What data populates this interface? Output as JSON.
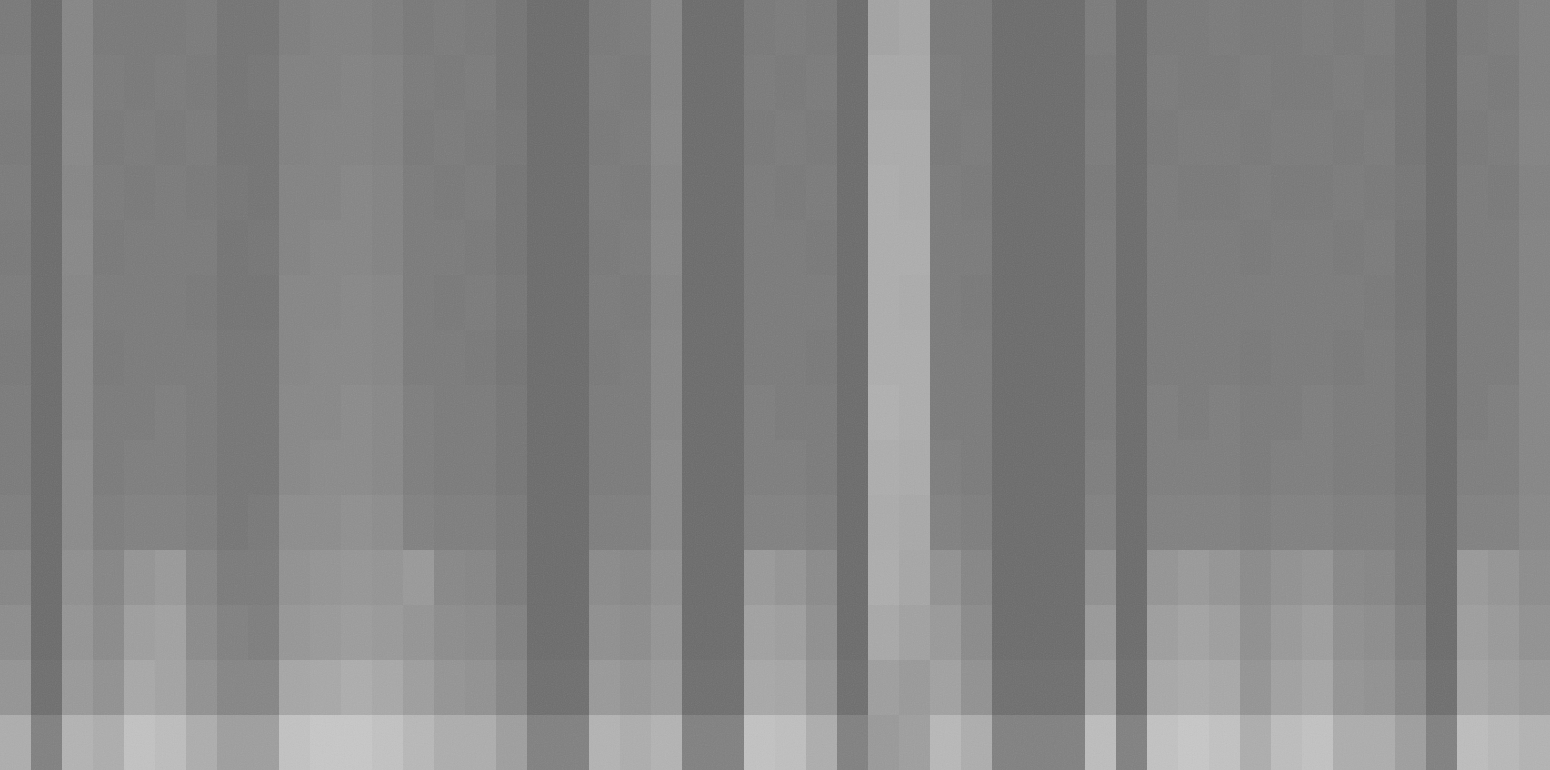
{
  "chart_data": {
    "type": "heatmap",
    "color": "gray",
    "zlim": [
      0,
      100
    ],
    "tick_labels": false,
    "cells": [
      [
        47,
        42,
        52,
        47,
        47,
        47,
        48,
        45,
        45,
        49,
        50,
        50,
        49,
        47,
        48,
        47,
        45,
        42,
        42,
        47,
        48,
        52,
        42,
        42,
        47,
        48,
        47,
        42,
        64,
        65,
        47,
        47,
        42,
        42,
        42,
        48,
        42,
        47,
        47,
        48,
        47,
        47,
        48,
        47,
        48,
        45,
        42,
        47,
        48,
        50
      ],
      [
        48,
        42,
        52,
        48,
        47,
        48,
        47,
        45,
        46,
        50,
        50,
        51,
        50,
        48,
        47,
        48,
        45,
        42,
        42,
        48,
        47,
        52,
        42,
        42,
        48,
        47,
        48,
        42,
        66,
        66,
        48,
        47,
        42,
        42,
        42,
        47,
        42,
        48,
        47,
        47,
        48,
        47,
        47,
        48,
        47,
        45,
        42,
        48,
        47,
        50
      ],
      [
        47,
        42,
        53,
        47,
        48,
        47,
        48,
        45,
        45,
        50,
        51,
        51,
        50,
        47,
        48,
        47,
        46,
        42,
        42,
        47,
        48,
        53,
        42,
        42,
        47,
        48,
        47,
        42,
        67,
        67,
        47,
        48,
        42,
        42,
        42,
        48,
        42,
        47,
        48,
        48,
        47,
        48,
        48,
        47,
        48,
        45,
        42,
        47,
        48,
        51
      ],
      [
        48,
        42,
        52,
        48,
        47,
        48,
        47,
        46,
        45,
        51,
        51,
        52,
        51,
        48,
        47,
        48,
        45,
        42,
        42,
        48,
        47,
        52,
        42,
        42,
        48,
        47,
        48,
        42,
        68,
        67,
        48,
        47,
        42,
        42,
        42,
        47,
        42,
        48,
        47,
        47,
        48,
        47,
        47,
        48,
        47,
        46,
        42,
        48,
        47,
        50
      ],
      [
        47,
        42,
        53,
        47,
        48,
        48,
        48,
        45,
        46,
        51,
        52,
        52,
        51,
        48,
        48,
        47,
        45,
        42,
        42,
        47,
        48,
        53,
        42,
        42,
        48,
        48,
        47,
        42,
        68,
        68,
        48,
        48,
        42,
        42,
        42,
        48,
        42,
        48,
        48,
        48,
        47,
        48,
        48,
        47,
        48,
        45,
        42,
        48,
        48,
        51
      ],
      [
        48,
        42,
        52,
        48,
        48,
        48,
        47,
        45,
        45,
        52,
        52,
        53,
        52,
        48,
        47,
        48,
        46,
        42,
        42,
        48,
        47,
        52,
        42,
        42,
        48,
        48,
        48,
        42,
        68,
        67,
        48,
        47,
        42,
        42,
        42,
        48,
        42,
        48,
        48,
        48,
        48,
        48,
        48,
        48,
        47,
        45,
        42,
        48,
        48,
        51
      ],
      [
        47,
        42,
        53,
        47,
        48,
        48,
        48,
        46,
        46,
        52,
        53,
        53,
        52,
        48,
        48,
        47,
        45,
        42,
        42,
        47,
        48,
        53,
        42,
        42,
        48,
        48,
        47,
        42,
        68,
        68,
        48,
        48,
        42,
        42,
        42,
        48,
        42,
        48,
        48,
        48,
        47,
        48,
        48,
        47,
        48,
        46,
        42,
        48,
        48,
        52
      ],
      [
        48,
        42,
        53,
        48,
        48,
        49,
        48,
        46,
        46,
        53,
        53,
        54,
        53,
        49,
        48,
        48,
        46,
        42,
        42,
        48,
        48,
        53,
        42,
        42,
        49,
        48,
        48,
        42,
        69,
        68,
        48,
        48,
        42,
        42,
        42,
        48,
        42,
        49,
        48,
        49,
        48,
        48,
        49,
        48,
        48,
        46,
        42,
        48,
        49,
        52
      ],
      [
        48,
        42,
        54,
        48,
        49,
        49,
        48,
        46,
        46,
        53,
        54,
        54,
        53,
        49,
        48,
        48,
        46,
        42,
        42,
        48,
        48,
        54,
        42,
        42,
        49,
        49,
        48,
        42,
        68,
        67,
        49,
        48,
        42,
        42,
        42,
        49,
        42,
        49,
        49,
        49,
        48,
        49,
        49,
        48,
        48,
        46,
        42,
        49,
        49,
        52
      ],
      [
        49,
        42,
        54,
        49,
        50,
        50,
        49,
        46,
        47,
        55,
        55,
        56,
        55,
        50,
        49,
        49,
        47,
        42,
        42,
        49,
        49,
        54,
        42,
        42,
        50,
        50,
        49,
        42,
        67,
        66,
        50,
        49,
        42,
        42,
        42,
        50,
        42,
        50,
        50,
        50,
        49,
        50,
        50,
        49,
        49,
        47,
        42,
        50,
        50,
        53
      ],
      [
        52,
        42,
        56,
        52,
        58,
        60,
        52,
        48,
        48,
        57,
        58,
        59,
        58,
        60,
        53,
        52,
        48,
        42,
        42,
        54,
        53,
        56,
        42,
        42,
        60,
        58,
        54,
        42,
        68,
        65,
        57,
        52,
        42,
        42,
        42,
        56,
        42,
        58,
        60,
        58,
        54,
        57,
        58,
        53,
        52,
        48,
        42,
        60,
        58,
        55
      ],
      [
        55,
        42,
        58,
        54,
        62,
        63,
        54,
        50,
        49,
        59,
        60,
        61,
        60,
        58,
        55,
        54,
        50,
        42,
        42,
        56,
        55,
        58,
        42,
        42,
        63,
        62,
        56,
        42,
        66,
        63,
        60,
        54,
        42,
        42,
        42,
        60,
        42,
        62,
        64,
        62,
        56,
        60,
        62,
        56,
        55,
        50,
        42,
        62,
        60,
        57
      ],
      [
        58,
        43,
        60,
        57,
        66,
        64,
        57,
        52,
        52,
        65,
        66,
        68,
        66,
        62,
        58,
        57,
        52,
        43,
        43,
        60,
        58,
        60,
        43,
        43,
        66,
        65,
        58,
        43,
        62,
        60,
        63,
        57,
        43,
        43,
        43,
        64,
        43,
        66,
        67,
        66,
        58,
        63,
        65,
        58,
        57,
        52,
        43,
        64,
        62,
        60
      ],
      [
        68,
        50,
        70,
        68,
        76,
        74,
        68,
        62,
        62,
        76,
        78,
        78,
        76,
        72,
        68,
        68,
        62,
        50,
        50,
        70,
        68,
        70,
        50,
        50,
        76,
        75,
        68,
        50,
        60,
        62,
        72,
        68,
        50,
        50,
        50,
        74,
        50,
        76,
        78,
        76,
        68,
        74,
        76,
        68,
        68,
        62,
        50,
        74,
        72,
        70
      ]
    ]
  }
}
